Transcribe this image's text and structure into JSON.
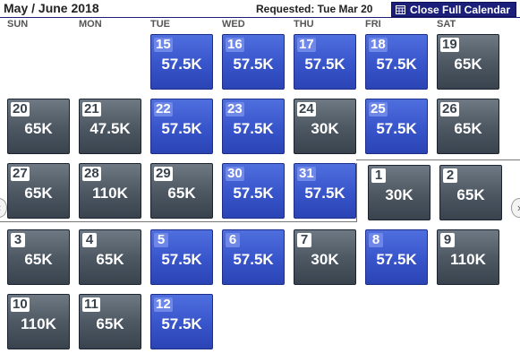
{
  "header": {
    "title": "May / June 2018",
    "requested": "Requested: Tue Mar 20",
    "close_label": "Close Full Calendar"
  },
  "weekdays": [
    "SUN",
    "MON",
    "TUE",
    "WED",
    "THU",
    "FRI",
    "SAT"
  ],
  "colors": {
    "unavailable_gray": "#4e5964",
    "low_fare_blue": "#3a56cc",
    "header_navy": "#1b1f7a"
  },
  "weeks": [
    [
      null,
      null,
      {
        "day": "15",
        "miles": "57.5K",
        "tone": "blue"
      },
      {
        "day": "16",
        "miles": "57.5K",
        "tone": "blue"
      },
      {
        "day": "17",
        "miles": "57.5K",
        "tone": "blue"
      },
      {
        "day": "18",
        "miles": "57.5K",
        "tone": "blue"
      },
      {
        "day": "19",
        "miles": "65K",
        "tone": "gray"
      }
    ],
    [
      {
        "day": "20",
        "miles": "65K",
        "tone": "gray"
      },
      {
        "day": "21",
        "miles": "47.5K",
        "tone": "gray"
      },
      {
        "day": "22",
        "miles": "57.5K",
        "tone": "blue"
      },
      {
        "day": "23",
        "miles": "57.5K",
        "tone": "blue"
      },
      {
        "day": "24",
        "miles": "30K",
        "tone": "gray"
      },
      {
        "day": "25",
        "miles": "57.5K",
        "tone": "blue"
      },
      {
        "day": "26",
        "miles": "65K",
        "tone": "gray"
      }
    ],
    [
      {
        "day": "27",
        "miles": "65K",
        "tone": "gray"
      },
      {
        "day": "28",
        "miles": "110K",
        "tone": "gray"
      },
      {
        "day": "29",
        "miles": "65K",
        "tone": "gray"
      },
      {
        "day": "30",
        "miles": "57.5K",
        "tone": "blue"
      },
      {
        "day": "31",
        "miles": "57.5K",
        "tone": "blue"
      },
      {
        "day": "1",
        "miles": "30K",
        "tone": "gray"
      },
      {
        "day": "2",
        "miles": "65K",
        "tone": "gray"
      }
    ],
    [
      {
        "day": "3",
        "miles": "65K",
        "tone": "gray"
      },
      {
        "day": "4",
        "miles": "65K",
        "tone": "gray"
      },
      {
        "day": "5",
        "miles": "57.5K",
        "tone": "blue"
      },
      {
        "day": "6",
        "miles": "57.5K",
        "tone": "blue"
      },
      {
        "day": "7",
        "miles": "30K",
        "tone": "gray"
      },
      {
        "day": "8",
        "miles": "57.5K",
        "tone": "blue"
      },
      {
        "day": "9",
        "miles": "110K",
        "tone": "gray"
      }
    ],
    [
      {
        "day": "10",
        "miles": "110K",
        "tone": "gray"
      },
      {
        "day": "11",
        "miles": "65K",
        "tone": "gray"
      },
      {
        "day": "12",
        "miles": "57.5K",
        "tone": "blue"
      },
      null,
      null,
      null,
      null
    ]
  ]
}
